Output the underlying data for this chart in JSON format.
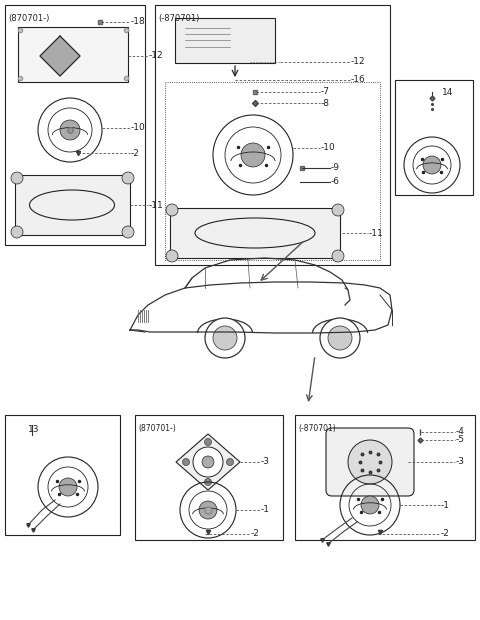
{
  "bg_color": "#ffffff",
  "lc": "#222222",
  "panel_tl_label": "(870701-)",
  "panel_tm_label": "(-870701)",
  "panel_bot_mid_label": "(870701-)",
  "panel_bot_right_label": "(-870701)"
}
